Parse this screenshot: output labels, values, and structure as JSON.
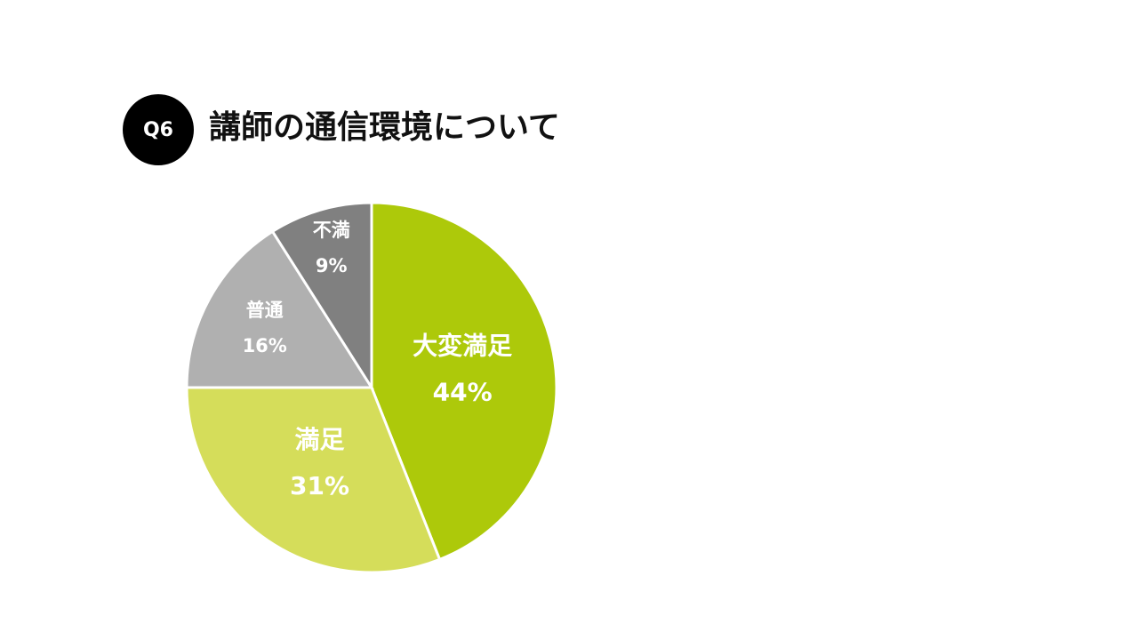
{
  "badge": {
    "label": "Q6"
  },
  "title": "講師の通信環境について",
  "chart_data": {
    "type": "pie",
    "title": "講師の通信環境について",
    "slices": [
      {
        "label": "大変満足",
        "value": 44,
        "value_label": "44%",
        "color": "#adc90a"
      },
      {
        "label": "満足",
        "value": 31,
        "value_label": "31%",
        "color": "#d5dd5a"
      },
      {
        "label": "普通",
        "value": 16,
        "value_label": "16%",
        "color": "#b0b0b0"
      },
      {
        "label": "不満",
        "value": 9,
        "value_label": "9%",
        "color": "#808080"
      }
    ],
    "start": "12 o'clock",
    "direction": "clockwise",
    "legend": "none"
  }
}
